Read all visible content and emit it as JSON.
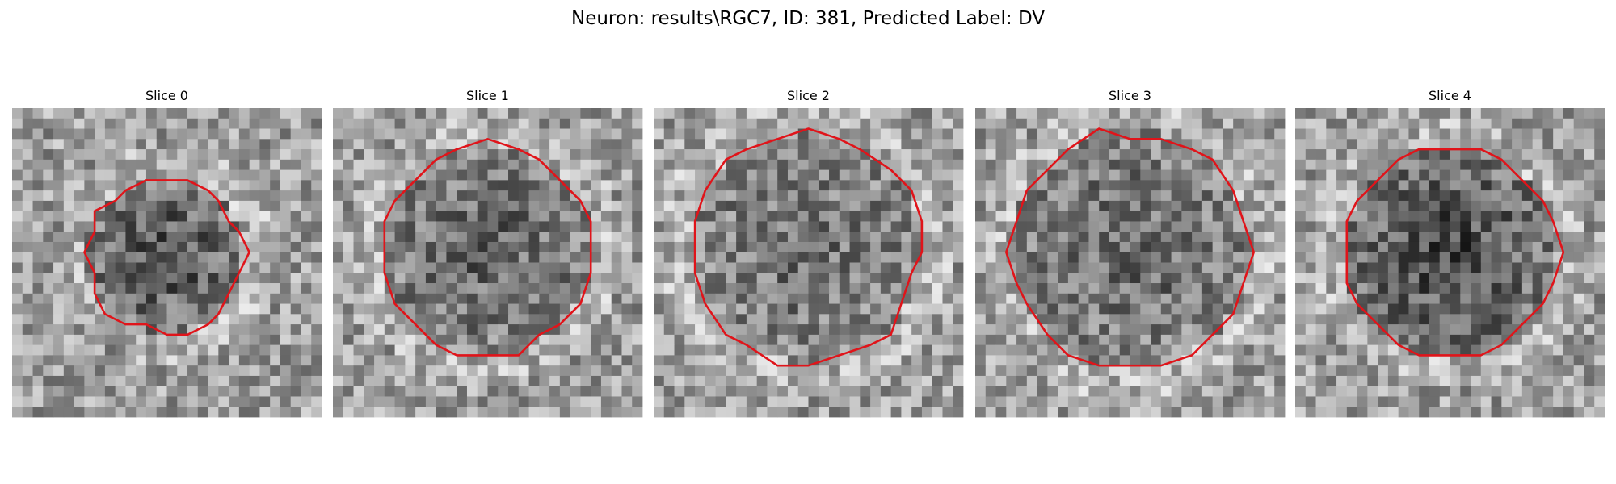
{
  "title": "Neuron: results\\RGC7, ID: 381, Predicted Label: DV",
  "panels": [
    {
      "title": "Slice 0"
    },
    {
      "title": "Slice 1"
    },
    {
      "title": "Slice 2"
    },
    {
      "title": "Slice 3"
    },
    {
      "title": "Slice 4"
    }
  ]
}
